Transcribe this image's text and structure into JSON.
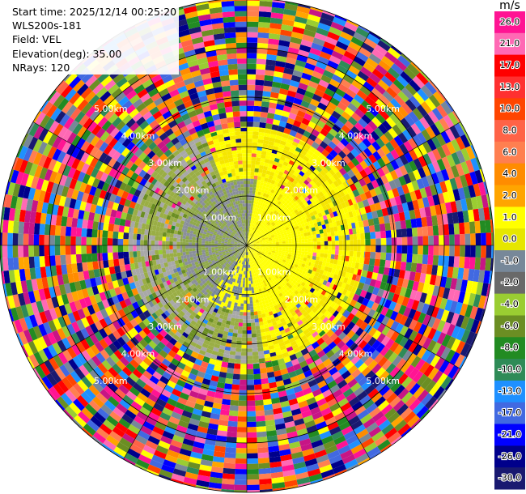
{
  "info": {
    "start_time": "Start time: 2025/12/14 00:25:20",
    "station": "WLS200s-181",
    "field": "Field: VEL",
    "elevation": "Elevation(deg): 35.00",
    "nrays": "NRays: 120"
  },
  "chart_data": {
    "type": "heatmap",
    "projection": "polar (PPI)",
    "field": "VEL",
    "n_rays": 120,
    "max_range_km": 5.0,
    "range_rings_km": [
      1.0,
      2.0,
      3.0,
      4.0
    ],
    "ring_labels": [
      "1.00km",
      "2.00km",
      "3.00km",
      "4.00km",
      "5.00km"
    ],
    "grid": true,
    "colorbar": {
      "unit": "m/s",
      "tick_labels": [
        "26.0",
        "21.0",
        "17.0",
        "13.0",
        "10.0",
        "8.0",
        "6.0",
        "4.0",
        "2.0",
        "1.0",
        "0.0",
        "-1.0",
        "-2.0",
        "-4.0",
        "-6.0",
        "-8.0",
        "-10.0",
        "-13.0",
        "-17.0",
        "-21.0",
        "-26.0",
        "-30.0"
      ],
      "colors": [
        "#ff1493",
        "#ff69b4",
        "#ff0000",
        "#ff3030",
        "#ff4500",
        "#ff6347",
        "#ff7f50",
        "#ff8c00",
        "#ffa500",
        "#ffff00",
        "#e6e600",
        "#778899",
        "#696969",
        "#9acd32",
        "#6b8e23",
        "#228b22",
        "#2e8b57",
        "#1e90ff",
        "#4169e1",
        "#0000ff",
        "#00008b",
        "#191970"
      ]
    },
    "pattern": {
      "near_range_cutoff_km": 1.35,
      "mid_range_cutoff_km": 2.4,
      "near_positive_side": "east",
      "near_negative_side": "west",
      "far_range": "noise"
    }
  }
}
